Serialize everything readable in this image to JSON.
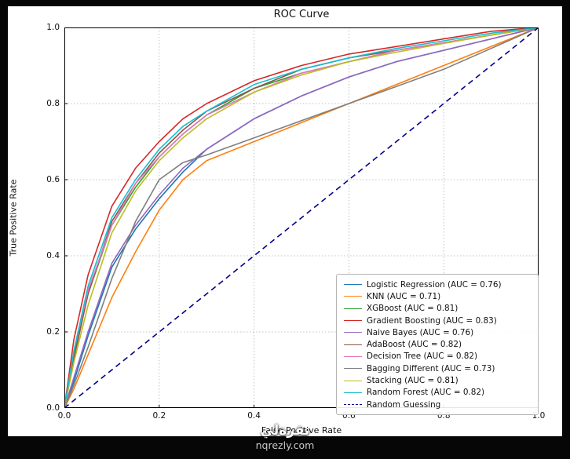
{
  "watermark": {
    "arabic": "نقرةلي",
    "domain": "nqrezly.com"
  },
  "chart_data": {
    "type": "line",
    "title": "ROC Curve",
    "xlabel": "False Positive Rate",
    "ylabel": "True Positive Rate",
    "xlim": [
      0.0,
      1.0
    ],
    "ylim": [
      0.0,
      1.0
    ],
    "xticks": [
      "0.0",
      "0.2",
      "0.4",
      "0.6",
      "0.8",
      "1.0"
    ],
    "yticks": [
      "0.0",
      "0.2",
      "0.4",
      "0.6",
      "0.8",
      "1.0"
    ],
    "grid": true,
    "grid_style": "dotted",
    "legend_position": "lower right",
    "series": [
      {
        "name": "Logistic Regression",
        "auc": 0.76,
        "label": "Logistic Regression (AUC = 0.76)",
        "color": "#1f77b4",
        "dash": false,
        "points": [
          [
            0,
            0
          ],
          [
            0.02,
            0.07
          ],
          [
            0.05,
            0.19
          ],
          [
            0.1,
            0.37
          ],
          [
            0.15,
            0.47
          ],
          [
            0.2,
            0.55
          ],
          [
            0.25,
            0.62
          ],
          [
            0.3,
            0.68
          ],
          [
            0.4,
            0.76
          ],
          [
            0.5,
            0.82
          ],
          [
            0.6,
            0.87
          ],
          [
            0.7,
            0.91
          ],
          [
            0.8,
            0.94
          ],
          [
            0.9,
            0.97
          ],
          [
            1,
            1
          ]
        ]
      },
      {
        "name": "KNN",
        "auc": 0.71,
        "label": "KNN (AUC = 0.71)",
        "color": "#ff7f0e",
        "dash": false,
        "points": [
          [
            0,
            0
          ],
          [
            0.02,
            0.05
          ],
          [
            0.05,
            0.14
          ],
          [
            0.1,
            0.29
          ],
          [
            0.15,
            0.41
          ],
          [
            0.2,
            0.52
          ],
          [
            0.25,
            0.6
          ],
          [
            0.3,
            0.65
          ],
          [
            0.4,
            0.7
          ],
          [
            0.5,
            0.75
          ],
          [
            0.6,
            0.8
          ],
          [
            0.7,
            0.85
          ],
          [
            0.8,
            0.9
          ],
          [
            0.9,
            0.95
          ],
          [
            1,
            1
          ]
        ]
      },
      {
        "name": "XGBoost",
        "auc": 0.81,
        "label": "XGBoost (AUC = 0.81)",
        "color": "#2ca02c",
        "dash": false,
        "points": [
          [
            0,
            0
          ],
          [
            0.02,
            0.14
          ],
          [
            0.05,
            0.3
          ],
          [
            0.1,
            0.48
          ],
          [
            0.15,
            0.58
          ],
          [
            0.2,
            0.66
          ],
          [
            0.25,
            0.72
          ],
          [
            0.3,
            0.77
          ],
          [
            0.4,
            0.84
          ],
          [
            0.5,
            0.88
          ],
          [
            0.6,
            0.91
          ],
          [
            0.7,
            0.94
          ],
          [
            0.8,
            0.96
          ],
          [
            0.9,
            0.98
          ],
          [
            1,
            1
          ]
        ]
      },
      {
        "name": "Gradient Boosting",
        "auc": 0.83,
        "label": "Gradient Boosting (AUC = 0.83)",
        "color": "#d62728",
        "dash": false,
        "points": [
          [
            0,
            0
          ],
          [
            0.02,
            0.18
          ],
          [
            0.05,
            0.35
          ],
          [
            0.1,
            0.53
          ],
          [
            0.15,
            0.63
          ],
          [
            0.2,
            0.7
          ],
          [
            0.25,
            0.76
          ],
          [
            0.3,
            0.8
          ],
          [
            0.4,
            0.86
          ],
          [
            0.5,
            0.9
          ],
          [
            0.6,
            0.93
          ],
          [
            0.7,
            0.95
          ],
          [
            0.8,
            0.97
          ],
          [
            0.9,
            0.99
          ],
          [
            1,
            1
          ]
        ]
      },
      {
        "name": "Naive Bayes",
        "auc": 0.76,
        "label": "Naive Bayes (AUC = 0.76)",
        "color": "#9467bd",
        "dash": false,
        "points": [
          [
            0,
            0
          ],
          [
            0.02,
            0.08
          ],
          [
            0.05,
            0.2
          ],
          [
            0.1,
            0.38
          ],
          [
            0.15,
            0.48
          ],
          [
            0.2,
            0.56
          ],
          [
            0.25,
            0.63
          ],
          [
            0.3,
            0.68
          ],
          [
            0.4,
            0.76
          ],
          [
            0.5,
            0.82
          ],
          [
            0.6,
            0.87
          ],
          [
            0.7,
            0.91
          ],
          [
            0.8,
            0.94
          ],
          [
            0.9,
            0.97
          ],
          [
            1,
            1
          ]
        ]
      },
      {
        "name": "AdaBoost",
        "auc": 0.82,
        "label": "AdaBoost (AUC = 0.82)",
        "color": "#8c564b",
        "dash": false,
        "points": [
          [
            0,
            0
          ],
          [
            0.02,
            0.13
          ],
          [
            0.05,
            0.3
          ],
          [
            0.1,
            0.49
          ],
          [
            0.15,
            0.59
          ],
          [
            0.2,
            0.67
          ],
          [
            0.25,
            0.73
          ],
          [
            0.3,
            0.78
          ],
          [
            0.4,
            0.84
          ],
          [
            0.5,
            0.89
          ],
          [
            0.6,
            0.92
          ],
          [
            0.7,
            0.94
          ],
          [
            0.8,
            0.96
          ],
          [
            0.9,
            0.98
          ],
          [
            1,
            1
          ]
        ]
      },
      {
        "name": "Decision Tree",
        "auc": 0.82,
        "label": "Decision Tree (AUC = 0.82)",
        "color": "#e377c2",
        "dash": false,
        "points": [
          [
            0,
            0
          ],
          [
            0.02,
            0.15
          ],
          [
            0.05,
            0.31
          ],
          [
            0.1,
            0.48
          ],
          [
            0.15,
            0.59
          ],
          [
            0.2,
            0.66
          ],
          [
            0.25,
            0.72
          ],
          [
            0.3,
            0.77
          ],
          [
            0.4,
            0.83
          ],
          [
            0.5,
            0.88
          ],
          [
            0.6,
            0.91
          ],
          [
            0.7,
            0.94
          ],
          [
            0.8,
            0.96
          ],
          [
            0.9,
            0.98
          ],
          [
            1,
            1
          ]
        ]
      },
      {
        "name": "Bagging Different",
        "auc": 0.73,
        "label": "Bagging Different (AUC = 0.73)",
        "color": "#7f7f7f",
        "dash": false,
        "points": [
          [
            0,
            0
          ],
          [
            0.02,
            0.06
          ],
          [
            0.05,
            0.16
          ],
          [
            0.1,
            0.34
          ],
          [
            0.15,
            0.49
          ],
          [
            0.2,
            0.6
          ],
          [
            0.25,
            0.645
          ],
          [
            0.3,
            0.665
          ],
          [
            0.4,
            0.71
          ],
          [
            0.5,
            0.755
          ],
          [
            0.6,
            0.8
          ],
          [
            0.7,
            0.845
          ],
          [
            0.8,
            0.89
          ],
          [
            0.9,
            0.945
          ],
          [
            1,
            1
          ]
        ]
      },
      {
        "name": "Stacking",
        "auc": 0.81,
        "label": "Stacking (AUC = 0.81)",
        "color": "#bcbd22",
        "dash": false,
        "points": [
          [
            0,
            0
          ],
          [
            0.02,
            0.12
          ],
          [
            0.05,
            0.27
          ],
          [
            0.1,
            0.46
          ],
          [
            0.15,
            0.57
          ],
          [
            0.2,
            0.65
          ],
          [
            0.25,
            0.71
          ],
          [
            0.3,
            0.76
          ],
          [
            0.4,
            0.83
          ],
          [
            0.5,
            0.875
          ],
          [
            0.6,
            0.91
          ],
          [
            0.7,
            0.935
          ],
          [
            0.8,
            0.958
          ],
          [
            0.9,
            0.98
          ],
          [
            1,
            1
          ]
        ]
      },
      {
        "name": "Random Forest",
        "auc": 0.82,
        "label": "Random Forest (AUC = 0.82)",
        "color": "#17becf",
        "dash": false,
        "points": [
          [
            0,
            0
          ],
          [
            0.02,
            0.15
          ],
          [
            0.05,
            0.32
          ],
          [
            0.1,
            0.5
          ],
          [
            0.15,
            0.6
          ],
          [
            0.2,
            0.68
          ],
          [
            0.25,
            0.74
          ],
          [
            0.3,
            0.78
          ],
          [
            0.4,
            0.85
          ],
          [
            0.5,
            0.89
          ],
          [
            0.6,
            0.92
          ],
          [
            0.7,
            0.945
          ],
          [
            0.8,
            0.965
          ],
          [
            0.9,
            0.985
          ],
          [
            1,
            1
          ]
        ]
      },
      {
        "name": "Random Guessing",
        "auc": null,
        "label": "Random Guessing",
        "color": "#00008b",
        "dash": true,
        "points": [
          [
            0,
            0
          ],
          [
            1,
            1
          ]
        ]
      }
    ]
  }
}
